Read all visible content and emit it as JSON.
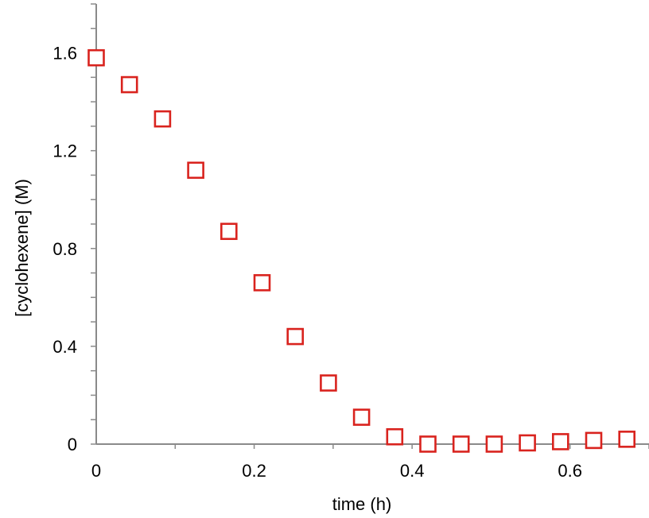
{
  "chart_data": {
    "type": "scatter",
    "xlabel": "time (h)",
    "ylabel": "[cyclohexene] (M)",
    "xlim": [
      0,
      0.7
    ],
    "ylim": [
      0,
      1.8
    ],
    "x_ticks": [
      "0",
      "0.2",
      "0.4",
      "0.6"
    ],
    "y_ticks": [
      "0",
      "0.4",
      "0.8",
      "1.2",
      "1.6"
    ],
    "x_tick_values": [
      0,
      0.2,
      0.4,
      0.6
    ],
    "y_tick_values": [
      0,
      0.4,
      0.8,
      1.2,
      1.6
    ],
    "grid": false,
    "marker_color": "#d9231e",
    "series": [
      {
        "marker": "open-square",
        "points": [
          {
            "x": 0.0,
            "y": 1.58
          },
          {
            "x": 0.042,
            "y": 1.47
          },
          {
            "x": 0.084,
            "y": 1.33
          },
          {
            "x": 0.126,
            "y": 1.12
          },
          {
            "x": 0.168,
            "y": 0.87
          },
          {
            "x": 0.21,
            "y": 0.66
          },
          {
            "x": 0.252,
            "y": 0.44
          },
          {
            "x": 0.294,
            "y": 0.25
          },
          {
            "x": 0.336,
            "y": 0.11
          },
          {
            "x": 0.378,
            "y": 0.03
          },
          {
            "x": 0.42,
            "y": 0.0
          },
          {
            "x": 0.462,
            "y": 0.0
          },
          {
            "x": 0.504,
            "y": 0.0
          },
          {
            "x": 0.546,
            "y": 0.005
          },
          {
            "x": 0.588,
            "y": 0.01
          },
          {
            "x": 0.63,
            "y": 0.015
          },
          {
            "x": 0.672,
            "y": 0.02
          }
        ]
      }
    ]
  }
}
